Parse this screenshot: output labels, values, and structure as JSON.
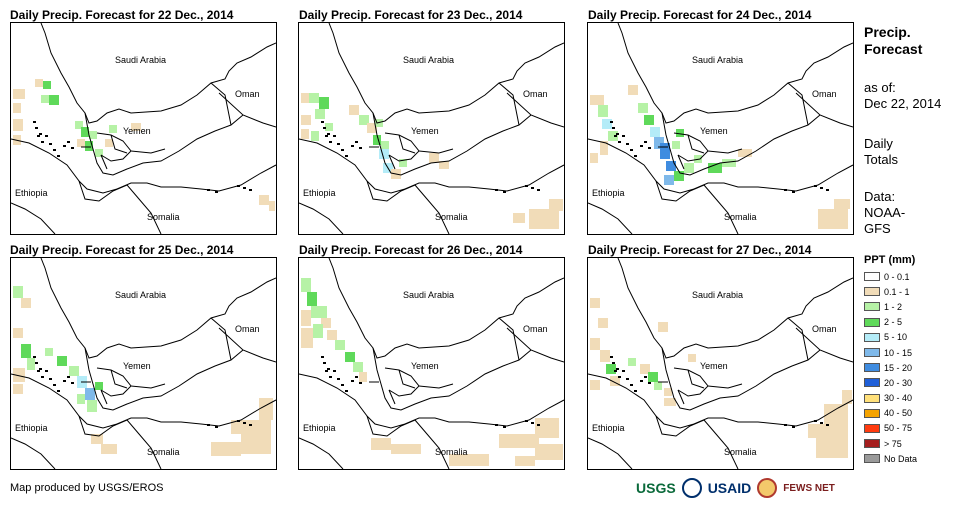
{
  "panels": [
    {
      "title": "Daily Precip. Forecast for 22 Dec., 2014",
      "scenario": 0
    },
    {
      "title": "Daily Precip. Forecast for 23 Dec., 2014",
      "scenario": 1
    },
    {
      "title": "Daily Precip. Forecast for 24 Dec., 2014",
      "scenario": 2
    },
    {
      "title": "Daily Precip. Forecast for 25 Dec., 2014",
      "scenario": 3
    },
    {
      "title": "Daily Precip. Forecast for 26 Dec., 2014",
      "scenario": 4
    },
    {
      "title": "Daily Precip. Forecast for 27 Dec., 2014",
      "scenario": 5
    }
  ],
  "place_labels": {
    "saudi": "Saudi Arabia",
    "oman": "Oman",
    "yemen": "Yemen",
    "ethiopia": "Ethiopia",
    "somalia": "Somalia"
  },
  "sidebar": {
    "title_line1": "Precip.",
    "title_line2": "Forecast",
    "asof_line1": "as of:",
    "asof_line2": "Dec 22, 2014",
    "daily_line1": "Daily",
    "daily_line2": "Totals",
    "data_line1": "Data:",
    "data_line2": "NOAA-",
    "data_line3": "GFS"
  },
  "legend": {
    "title": "PPT (mm)",
    "items": [
      {
        "label": "0 - 0.1",
        "color": "#ffffff"
      },
      {
        "label": "0.1 - 1",
        "color": "#f1dcb8"
      },
      {
        "label": "1 - 2",
        "color": "#b6f2a6"
      },
      {
        "label": "2 - 5",
        "color": "#5fd95a"
      },
      {
        "label": "5 - 10",
        "color": "#b4ecf8"
      },
      {
        "label": "10 - 15",
        "color": "#7fb9ea"
      },
      {
        "label": "15 - 20",
        "color": "#3f8ce0"
      },
      {
        "label": "20 - 30",
        "color": "#1f5fd8"
      },
      {
        "label": "30 - 40",
        "color": "#ffe07a"
      },
      {
        "label": "40 - 50",
        "color": "#f5a300"
      },
      {
        "label": "50 - 75",
        "color": "#ff3b0f"
      },
      {
        "label": "> 75",
        "color": "#a51e1e"
      },
      {
        "label": "No Data",
        "color": "#9a9a9a"
      }
    ]
  },
  "footer": {
    "credit": "Map produced by USGS/EROS"
  },
  "logos": {
    "usgs": "USGS",
    "usaid": "USAID",
    "fews": "FEWS NET"
  }
}
